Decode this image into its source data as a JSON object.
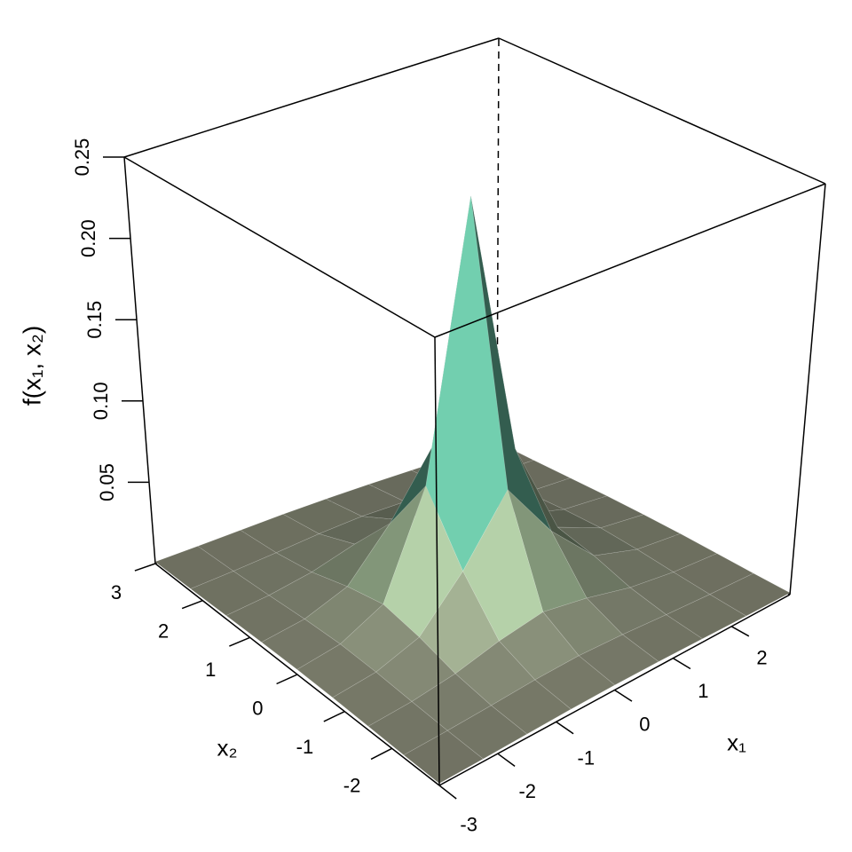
{
  "chart_data": {
    "type": "surface",
    "xlabel": "x₁",
    "ylabel": "x₂",
    "zlabel": "f(x₁, x₂)",
    "x": [
      -3,
      -2.25,
      -1.5,
      -0.75,
      0,
      0.75,
      1.5,
      2.25,
      3
    ],
    "y": [
      -3,
      -2.25,
      -1.5,
      -0.75,
      0,
      0.75,
      1.5,
      2.25,
      3
    ],
    "z": [
      [
        0.0011,
        0.0015,
        0.0021,
        0.0027,
        0.0029,
        0.0027,
        0.0021,
        0.0015,
        0.0011
      ],
      [
        0.0015,
        0.0025,
        0.0039,
        0.0056,
        0.0065,
        0.0056,
        0.0039,
        0.0025,
        0.0015
      ],
      [
        0.0021,
        0.0039,
        0.0076,
        0.0141,
        0.0186,
        0.0141,
        0.0076,
        0.0039,
        0.0021
      ],
      [
        0.0027,
        0.0056,
        0.0141,
        0.041,
        0.0775,
        0.041,
        0.0141,
        0.0056,
        0.0027
      ],
      [
        0.0029,
        0.0065,
        0.0186,
        0.0775,
        0.24,
        0.0775,
        0.0186,
        0.0065,
        0.0029
      ],
      [
        0.0027,
        0.0056,
        0.0141,
        0.041,
        0.0775,
        0.041,
        0.0141,
        0.0056,
        0.0027
      ],
      [
        0.0021,
        0.0039,
        0.0076,
        0.0141,
        0.0186,
        0.0141,
        0.0076,
        0.0039,
        0.0021
      ],
      [
        0.0015,
        0.0025,
        0.0039,
        0.0056,
        0.0065,
        0.0056,
        0.0039,
        0.0025,
        0.0015
      ],
      [
        0.0011,
        0.0015,
        0.0021,
        0.0027,
        0.0029,
        0.0027,
        0.0021,
        0.0015,
        0.0011
      ]
    ],
    "xlim": [
      -3,
      3
    ],
    "ylim": [
      -3,
      3
    ],
    "zlim": [
      0,
      0.25
    ],
    "xticks": [
      -3,
      -2,
      -1,
      0,
      1,
      2
    ],
    "yticks": [
      -2,
      -1,
      0,
      1,
      2,
      3
    ],
    "zticks": [
      0.05,
      {
        "value": 0.1,
        "label": "0.10"
      },
      0.15,
      {
        "value": 0.2,
        "label": "0.20"
      },
      0.25
    ],
    "palette": [
      "#8a8a78",
      "#b8e2b2",
      "#4fb59e",
      "#1e6e96",
      "#0c2a5c"
    ],
    "box": true
  }
}
